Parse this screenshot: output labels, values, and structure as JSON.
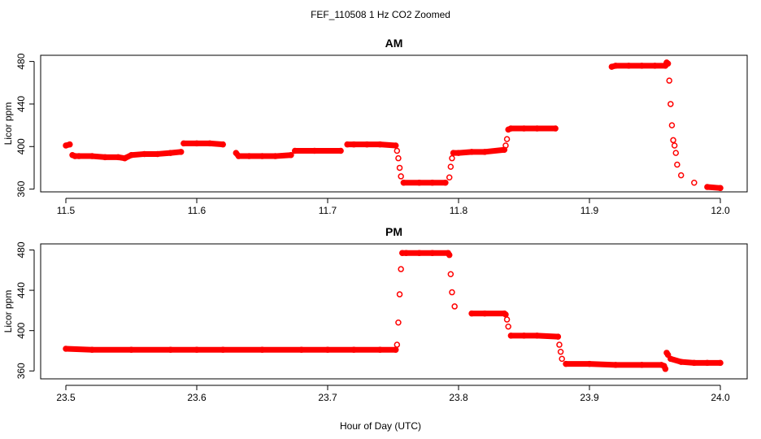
{
  "title": "FEF_110508  1 Hz CO2 Zoomed",
  "xlabel": "Hour of Day (UTC)",
  "colors": {
    "points": "#ff0000",
    "axes": "#000000"
  },
  "chart_data": [
    {
      "type": "scatter",
      "title": "AM",
      "ylabel": "Licor ppm",
      "xlim": [
        11.5,
        12.0
      ],
      "ylim": [
        362,
        482
      ],
      "xticks": [
        11.5,
        11.6,
        11.7,
        11.8,
        11.9,
        12.0
      ],
      "xtick_labels": [
        "11.5",
        "11.6",
        "11.7",
        "11.8",
        "11.9",
        "12.0"
      ],
      "yticks": [
        360,
        400,
        440,
        480
      ],
      "ytick_labels": [
        "360",
        "400",
        "440",
        "480"
      ],
      "series": [
        {
          "marker": "open-circle",
          "color": "#ff0000",
          "x": [
            11.5,
            11.503,
            11.505,
            11.507,
            11.51,
            11.52,
            11.53,
            11.54,
            11.545,
            11.55,
            11.56,
            11.57,
            11.58,
            11.588,
            11.59,
            11.6,
            11.61,
            11.62,
            11.63,
            11.632,
            11.64,
            11.65,
            11.66,
            11.672,
            11.675,
            11.69,
            11.71,
            11.715,
            11.72,
            11.73,
            11.74,
            11.752,
            11.753,
            11.754,
            11.755,
            11.756,
            11.758,
            11.77,
            11.78,
            11.79,
            11.793,
            11.794,
            11.795,
            11.796,
            11.8,
            11.81,
            11.82,
            11.835,
            11.836,
            11.837,
            11.838,
            11.84,
            11.85,
            11.86,
            11.874,
            11.917,
            11.92,
            11.93,
            11.94,
            11.95,
            11.958,
            11.959,
            11.96,
            11.961,
            11.962,
            11.963,
            11.964,
            11.965,
            11.966,
            11.967,
            11.97,
            11.98,
            11.99,
            12.0
          ],
          "y": [
            401,
            402,
            392,
            391,
            391,
            391,
            390,
            390,
            389,
            392,
            393,
            393,
            394,
            395,
            403,
            403,
            403,
            402,
            394,
            391,
            391,
            391,
            391,
            392,
            396,
            396,
            396,
            402,
            402,
            402,
            402,
            401,
            396,
            389,
            380,
            372,
            366,
            366,
            366,
            366,
            371,
            381,
            389,
            394,
            394,
            395,
            395,
            397,
            401,
            407,
            416,
            417,
            417,
            417,
            417,
            475,
            476,
            476,
            476,
            476,
            476,
            479,
            478,
            462,
            440,
            420,
            406,
            401,
            394,
            383,
            373,
            366,
            362,
            361
          ]
        }
      ]
    },
    {
      "type": "scatter",
      "title": "PM",
      "ylabel": "Licor ppm",
      "xlim": [
        23.5,
        24.0
      ],
      "ylim": [
        357,
        482
      ],
      "xticks": [
        23.5,
        23.6,
        23.7,
        23.8,
        23.9,
        24.0
      ],
      "xtick_labels": [
        "23.5",
        "23.6",
        "23.7",
        "23.8",
        "23.9",
        "24.0"
      ],
      "yticks": [
        360,
        400,
        440,
        480
      ],
      "ytick_labels": [
        "360",
        "400",
        "440",
        "480"
      ],
      "series": [
        {
          "marker": "open-circle",
          "color": "#ff0000",
          "x": [
            23.5,
            23.52,
            23.55,
            23.58,
            23.6,
            23.62,
            23.65,
            23.68,
            23.7,
            23.72,
            23.74,
            23.752,
            23.753,
            23.754,
            23.755,
            23.756,
            23.757,
            23.76,
            23.77,
            23.78,
            23.792,
            23.793,
            23.794,
            23.795,
            23.797,
            23.81,
            23.82,
            23.835,
            23.836,
            23.837,
            23.838,
            23.84,
            23.85,
            23.86,
            23.876,
            23.877,
            23.878,
            23.879,
            23.882,
            23.9,
            23.92,
            23.94,
            23.955,
            23.957,
            23.958,
            23.959,
            23.96,
            23.962,
            23.97,
            23.98,
            23.99,
            24.0
          ],
          "y": [
            382,
            381,
            381,
            381,
            381,
            381,
            381,
            381,
            381,
            381,
            381,
            381,
            386,
            408,
            436,
            461,
            477,
            477,
            477,
            477,
            477,
            475,
            456,
            438,
            424,
            417,
            417,
            417,
            416,
            411,
            404,
            395,
            395,
            395,
            394,
            386,
            379,
            372,
            367,
            367,
            366,
            366,
            366,
            365,
            362,
            378,
            376,
            372,
            369,
            368,
            368,
            368
          ]
        }
      ]
    }
  ]
}
